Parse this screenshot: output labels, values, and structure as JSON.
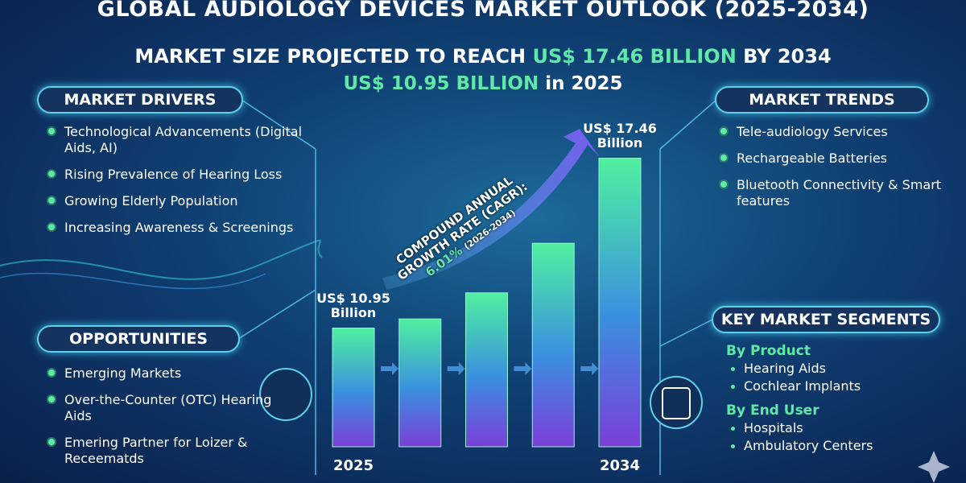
{
  "header": {
    "title": "GLOBAL AUDIOLOGY DEVICES MARKET OUTLOOK (2025-2034)",
    "headline_prefix": "MARKET SIZE PROJECTED TO REACH",
    "headline_value": "US$ 17.46 BILLION",
    "headline_suffix": "BY 2034",
    "base_value": "US$ 10.95 BILLION",
    "base_suffix": "in 2025"
  },
  "drivers": {
    "title": "MARKET DRIVERS",
    "items": [
      "Technological Advancements (Digital Aids, AI)",
      "Rising Prevalence of Hearing Loss",
      "Growing Elderly Population",
      "Increasing Awareness & Screenings"
    ]
  },
  "opportunities": {
    "title": "OPPORTUNITIES",
    "items": [
      "Emerging Markets",
      "Over-the-Counter (OTC) Hearing Aids",
      "Emering Partner for Loizer & Receematds"
    ]
  },
  "trends": {
    "title": "MARKET TRENDS",
    "items": [
      "Tele-audiology Services",
      "Rechargeable Batteries",
      "Bluetooth Connectivity & Smart features"
    ]
  },
  "segments": {
    "title": "KEY MARKET SEGMENTS",
    "groups": [
      {
        "title": "By Product",
        "items": [
          "Hearing Aids",
          "Cochlear Implants"
        ]
      },
      {
        "title": "By End User",
        "items": [
          "Hospitals",
          "Ambulatory Centers"
        ]
      }
    ]
  },
  "cagr": {
    "line1": "COMPOUND ANNUAL",
    "line2": "GROWTH RATE (CAGR):",
    "value": "6.01%",
    "period": "(2026-2034)"
  },
  "chart_data": {
    "type": "bar",
    "categories": [
      "2025",
      null,
      null,
      null,
      "2034"
    ],
    "values": [
      10.95,
      11.3,
      12.3,
      14.2,
      17.46
    ],
    "value_labels": [
      "US$ 10.95 Billion",
      null,
      null,
      null,
      "US$ 17.46 Billion"
    ],
    "ylim": [
      6.4,
      18
    ]
  }
}
